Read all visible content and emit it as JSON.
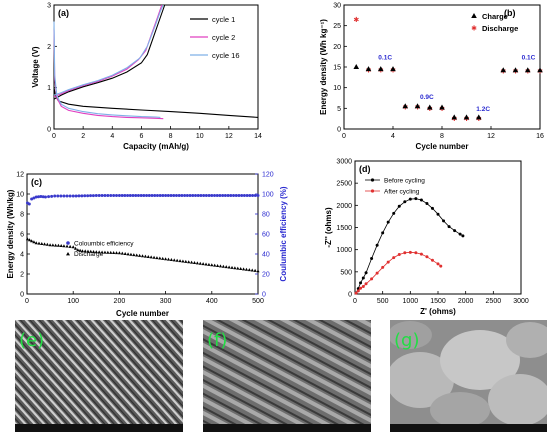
{
  "chart_data": [
    {
      "panel": "(a)",
      "type": "line",
      "xlabel": "Capacity (mAh/g)",
      "ylabel": "Voltage (V)",
      "xlim": [
        0,
        14
      ],
      "ylim": [
        0,
        3
      ],
      "xticks": [
        0,
        2,
        4,
        6,
        8,
        10,
        12,
        14
      ],
      "yticks": [
        0,
        1,
        2,
        3
      ],
      "legend": "top-right",
      "series": [
        {
          "name": "cycle 1",
          "color": "#000000",
          "discharge": [
            [
              0,
              1.0
            ],
            [
              0.1,
              0.8
            ],
            [
              0.3,
              0.68
            ],
            [
              1,
              0.6
            ],
            [
              2,
              0.55
            ],
            [
              4,
              0.5
            ],
            [
              6,
              0.46
            ],
            [
              8,
              0.42
            ],
            [
              10,
              0.38
            ],
            [
              12,
              0.33
            ],
            [
              14,
              0.28
            ]
          ],
          "charge": [
            [
              0,
              0.72
            ],
            [
              0.5,
              0.82
            ],
            [
              1,
              0.9
            ],
            [
              2,
              1.02
            ],
            [
              3,
              1.12
            ],
            [
              4,
              1.23
            ],
            [
              5,
              1.38
            ],
            [
              6,
              1.6
            ],
            [
              6.4,
              1.8
            ],
            [
              6.8,
              2.2
            ],
            [
              7.2,
              2.6
            ],
            [
              7.6,
              3.0
            ]
          ]
        },
        {
          "name": "cycle 2",
          "color": "#e040c0",
          "discharge": [
            [
              0,
              2.4
            ],
            [
              0.05,
              1.2
            ],
            [
              0.2,
              0.75
            ],
            [
              0.5,
              0.55
            ],
            [
              1,
              0.45
            ],
            [
              2,
              0.38
            ],
            [
              3,
              0.33
            ],
            [
              4,
              0.3
            ],
            [
              5,
              0.28
            ],
            [
              6,
              0.27
            ],
            [
              7,
              0.26
            ],
            [
              7.5,
              0.25
            ]
          ],
          "charge": [
            [
              0,
              0.78
            ],
            [
              0.5,
              0.85
            ],
            [
              1,
              0.93
            ],
            [
              2,
              1.05
            ],
            [
              3,
              1.15
            ],
            [
              4,
              1.28
            ],
            [
              5,
              1.45
            ],
            [
              5.8,
              1.68
            ],
            [
              6.3,
              1.9
            ],
            [
              6.7,
              2.3
            ],
            [
              7.1,
              2.7
            ],
            [
              7.4,
              3.0
            ]
          ]
        },
        {
          "name": "cycle 16",
          "color": "#7fb0e8",
          "discharge": [
            [
              0,
              2.6
            ],
            [
              0.05,
              1.3
            ],
            [
              0.2,
              0.8
            ],
            [
              0.5,
              0.6
            ],
            [
              1,
              0.5
            ],
            [
              2,
              0.42
            ],
            [
              3,
              0.37
            ],
            [
              4,
              0.34
            ],
            [
              5,
              0.32
            ],
            [
              6,
              0.3
            ],
            [
              7,
              0.29
            ],
            [
              7.3,
              0.28
            ]
          ],
          "charge": [
            [
              0,
              0.82
            ],
            [
              0.5,
              0.88
            ],
            [
              1,
              0.95
            ],
            [
              2,
              1.07
            ],
            [
              3,
              1.17
            ],
            [
              4,
              1.3
            ],
            [
              5,
              1.48
            ],
            [
              5.9,
              1.72
            ],
            [
              6.4,
              2.0
            ],
            [
              6.9,
              2.45
            ],
            [
              7.3,
              2.85
            ],
            [
              7.5,
              3.0
            ]
          ]
        }
      ]
    },
    {
      "panel": "(b)",
      "type": "scatter",
      "xlabel": "Cycle number",
      "ylabel": "Energy density (Wh kg⁻¹)",
      "xlim": [
        0,
        16
      ],
      "ylim": [
        0,
        30
      ],
      "xticks": [
        0,
        4,
        8,
        12,
        16
      ],
      "yticks": [
        0,
        5,
        10,
        15,
        20,
        25,
        30
      ],
      "legend": "top-right",
      "annotations": [
        {
          "text": "0.1C",
          "x": 2.8,
          "y": 16.8
        },
        {
          "text": "0.9C",
          "x": 6.2,
          "y": 7.2
        },
        {
          "text": "1.2C",
          "x": 10.8,
          "y": 4.4
        },
        {
          "text": "0.1C",
          "x": 14.5,
          "y": 16.8
        }
      ],
      "series": [
        {
          "name": "Charge",
          "color": "#000000",
          "marker": "triangle",
          "x": [
            1,
            2,
            3,
            4,
            5,
            6,
            7,
            8,
            9,
            10,
            11,
            13,
            14,
            15,
            16
          ],
          "y": [
            15,
            14.5,
            14.5,
            14.5,
            5.5,
            5.5,
            5.2,
            5.2,
            2.8,
            2.8,
            2.8,
            14.2,
            14.2,
            14.2,
            14.2
          ]
        },
        {
          "name": "Discharge",
          "color": "#e03030",
          "marker": "star",
          "x": [
            1,
            2,
            3,
            4,
            5,
            6,
            7,
            8,
            9,
            10,
            11,
            13,
            14,
            15,
            16
          ],
          "y": [
            26.5,
            14.3,
            14.3,
            14.3,
            5.3,
            5.3,
            5.0,
            5.0,
            2.6,
            2.6,
            2.6,
            14.0,
            14.0,
            14.0,
            14.0
          ]
        }
      ]
    },
    {
      "panel": "(c)",
      "type": "scatter",
      "xlabel": "Cycle number",
      "ylabel": "Energy density (Wh/kg)",
      "ylabel_right": "Coulumbic efficiency (%)",
      "xlim": [
        0,
        500
      ],
      "ylim": [
        0,
        12
      ],
      "ylim_right": [
        0,
        120
      ],
      "xticks": [
        0,
        100,
        200,
        300,
        400,
        500
      ],
      "yticks": [
        0,
        2,
        4,
        6,
        8,
        10,
        12
      ],
      "yticks_right": [
        0,
        20,
        40,
        60,
        80,
        100,
        120
      ],
      "legend": "bottom-left",
      "series": [
        {
          "name": "Coloumbic efficiency",
          "color": "#3a3acc",
          "axis": "right",
          "x": [
            1,
            5,
            10,
            20,
            30,
            40,
            60,
            80,
            100,
            150,
            200,
            300,
            400,
            500
          ],
          "y": [
            91,
            90,
            95,
            97,
            97.5,
            97,
            98,
            98,
            98,
            98.5,
            98.5,
            98.5,
            98.5,
            98.5
          ]
        },
        {
          "name": "Discharge",
          "color": "#000000",
          "axis": "left",
          "x": [
            1,
            10,
            20,
            50,
            80,
            100,
            110,
            120,
            150,
            200,
            250,
            300,
            350,
            400,
            450,
            500
          ],
          "y": [
            5.5,
            5.3,
            5.1,
            4.9,
            4.8,
            4.7,
            4.4,
            4.3,
            4.2,
            4.1,
            3.8,
            3.5,
            3.2,
            2.9,
            2.6,
            2.3
          ]
        }
      ]
    },
    {
      "panel": "(d)",
      "type": "scatter",
      "xlabel": "Z' (ohms)",
      "ylabel": "-Z'' (ohms)",
      "xlim": [
        0,
        3000
      ],
      "ylim": [
        0,
        3000
      ],
      "xticks": [
        0,
        500,
        1000,
        1500,
        2000,
        2500,
        3000
      ],
      "yticks": [
        0,
        500,
        1000,
        1500,
        2000,
        2500,
        3000
      ],
      "legend": "top-left",
      "series": [
        {
          "name": "Before cycling",
          "color": "#000000",
          "x": [
            20,
            60,
            100,
            150,
            200,
            300,
            400,
            500,
            600,
            700,
            800,
            900,
            1000,
            1100,
            1200,
            1300,
            1400,
            1500,
            1600,
            1700,
            1800,
            1900,
            1950
          ],
          "y": [
            20,
            120,
            250,
            360,
            480,
            800,
            1100,
            1380,
            1620,
            1820,
            1980,
            2080,
            2140,
            2150,
            2120,
            2040,
            1930,
            1800,
            1650,
            1520,
            1430,
            1350,
            1310
          ]
        },
        {
          "name": "After cycling",
          "color": "#e03030",
          "x": [
            20,
            60,
            100,
            150,
            200,
            300,
            400,
            500,
            600,
            700,
            800,
            900,
            1000,
            1100,
            1200,
            1300,
            1400,
            1500,
            1550
          ],
          "y": [
            20,
            70,
            130,
            170,
            230,
            340,
            470,
            600,
            720,
            820,
            890,
            930,
            940,
            930,
            900,
            840,
            760,
            680,
            630
          ]
        }
      ]
    }
  ],
  "panels": {
    "a": "(a)",
    "b": "(b)",
    "c": "(c)",
    "d": "(d)",
    "e": "(e)",
    "f": "(f)",
    "g": "(g)"
  }
}
